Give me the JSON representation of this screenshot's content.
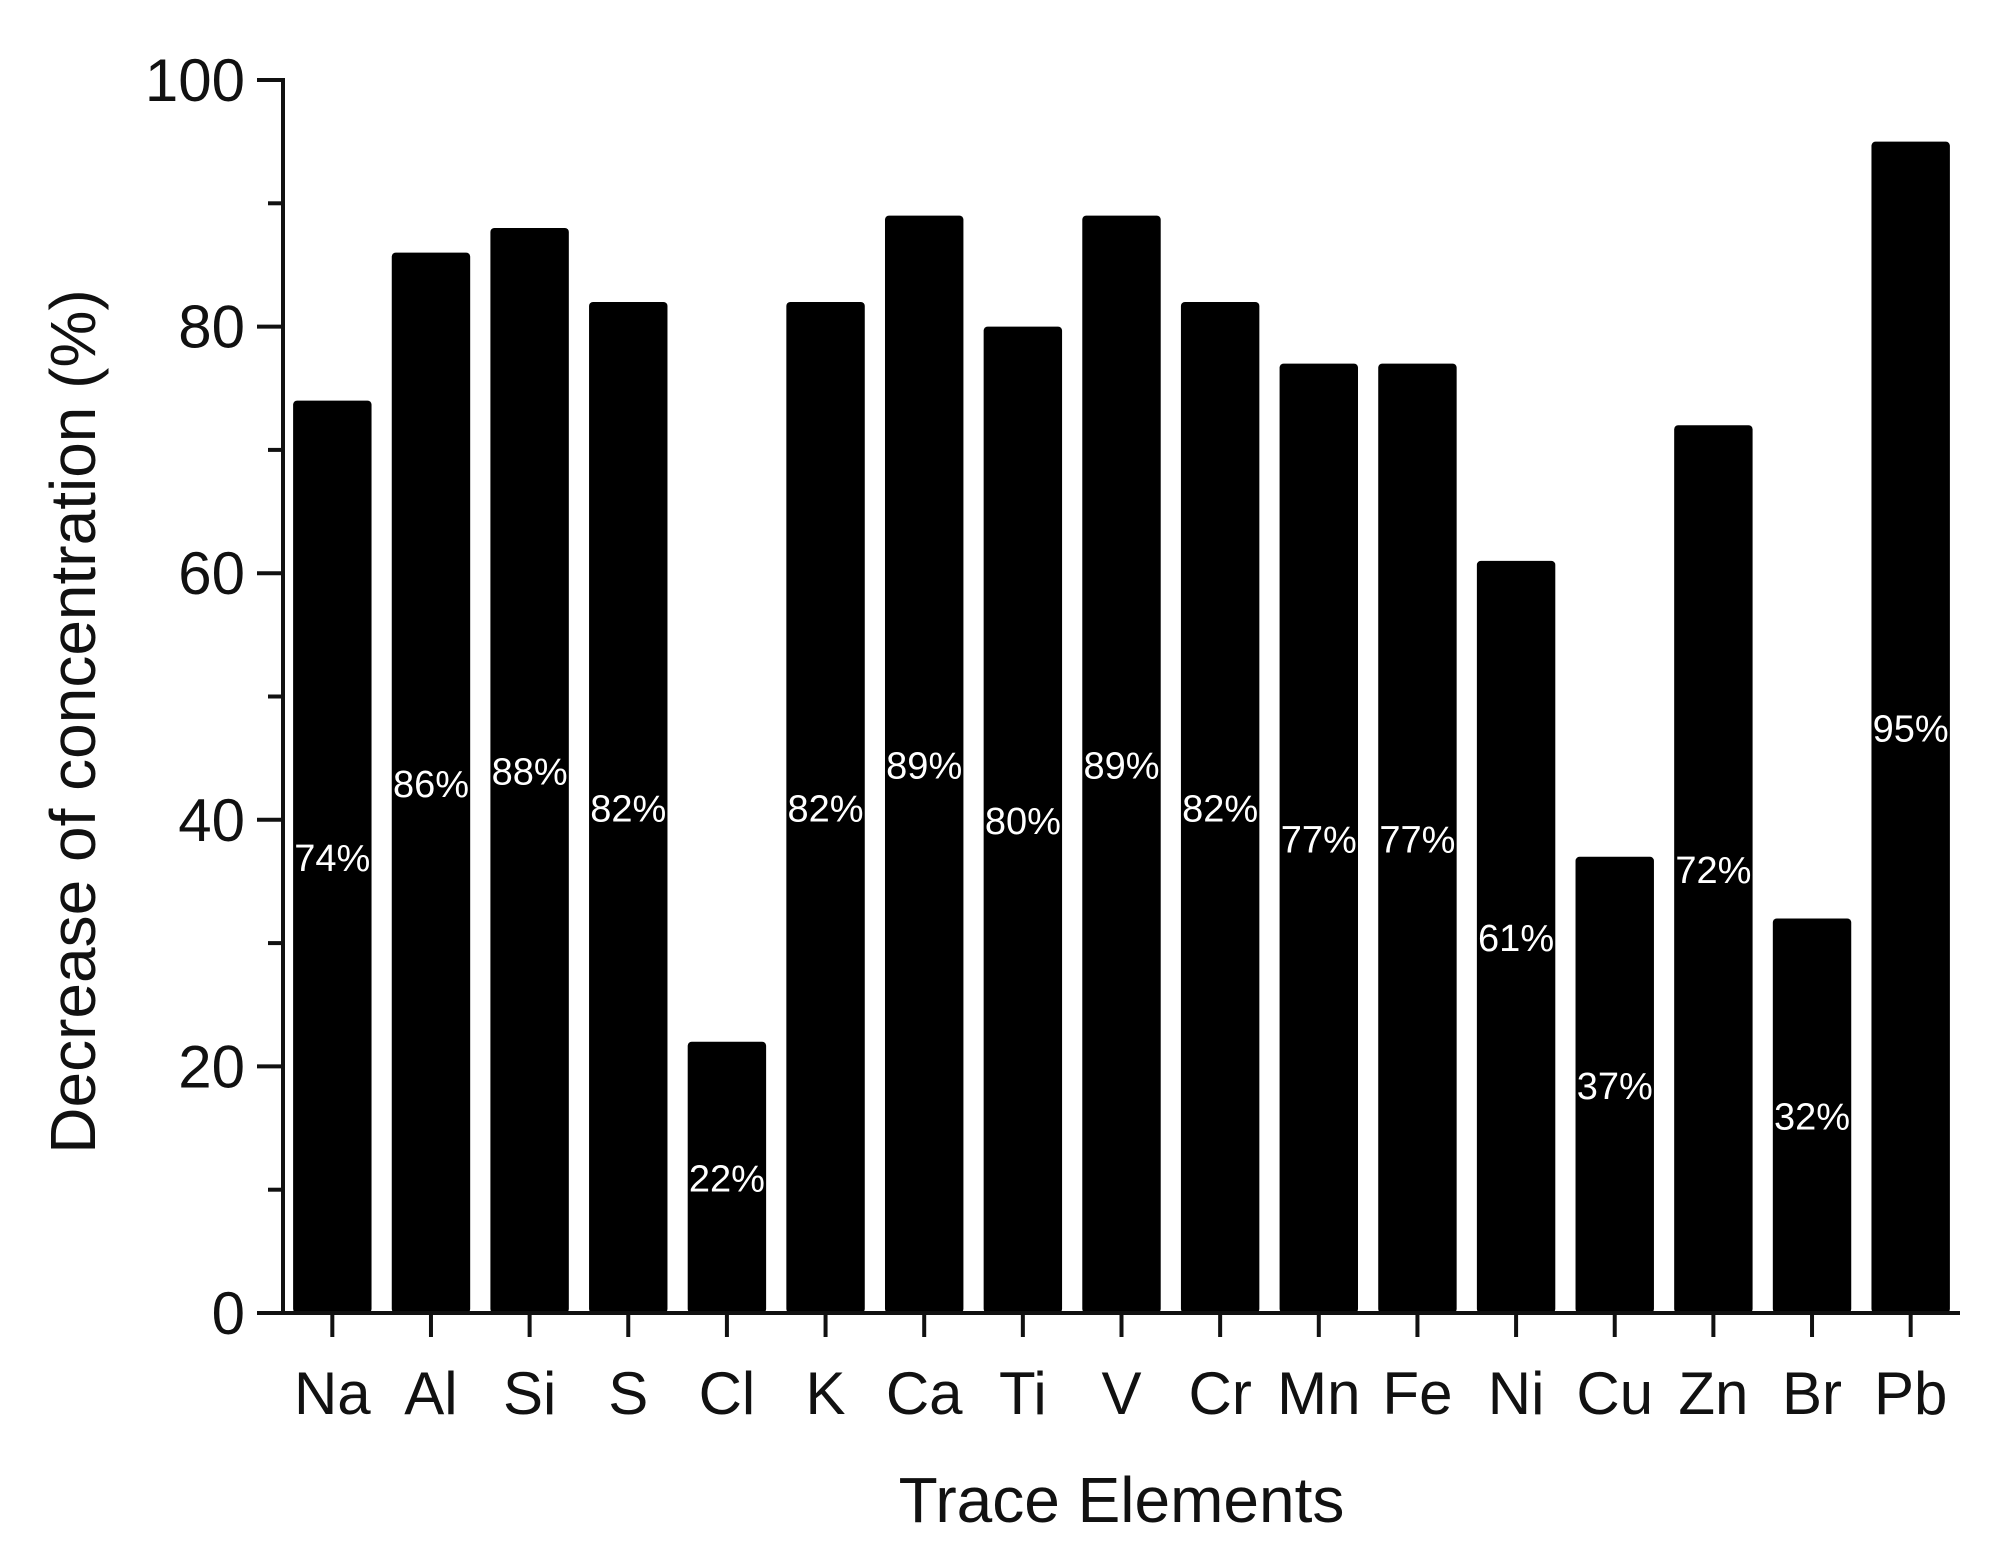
{
  "chart_data": {
    "type": "bar",
    "xlabel": "Trace Elements",
    "ylabel": "Decrease of concentration (%)",
    "ylim": [
      0,
      100
    ],
    "yticks": [
      0,
      20,
      40,
      60,
      80,
      100
    ],
    "grid": false,
    "categories": [
      "Na",
      "Al",
      "Si",
      "S",
      "Cl",
      "K",
      "Ca",
      "Ti",
      "V",
      "Cr",
      "Mn",
      "Fe",
      "Ni",
      "Cu",
      "Zn",
      "Br",
      "Pb"
    ],
    "values": [
      74,
      86,
      88,
      82,
      22,
      82,
      89,
      80,
      89,
      82,
      77,
      77,
      61,
      37,
      72,
      32,
      95
    ],
    "data_labels": [
      "74%",
      "86%",
      "88%",
      "82%",
      "22%",
      "82%",
      "89%",
      "80%",
      "89%",
      "82%",
      "77%",
      "77%",
      "61%",
      "37%",
      "72%",
      "32%",
      "95%"
    ],
    "bar_color": "#000000",
    "label_color": "#ffffff"
  }
}
